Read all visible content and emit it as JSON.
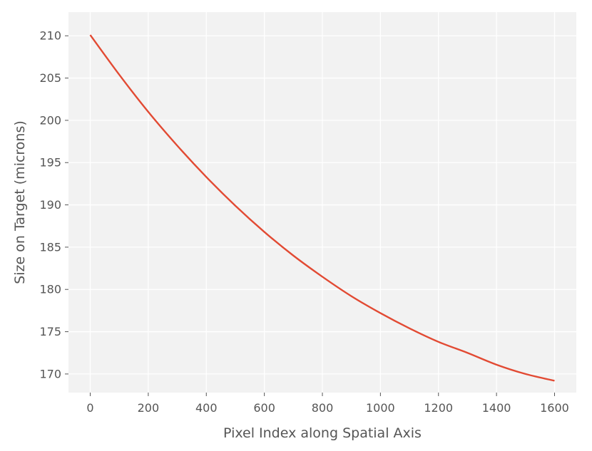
{
  "chart_data": {
    "type": "line",
    "title": "",
    "xlabel": "Pixel Index along Spatial Axis",
    "ylabel": "Size on Target (microns)",
    "xlim": [
      -75,
      1675
    ],
    "ylim": [
      167.8,
      212.8
    ],
    "xticks": [
      0,
      200,
      400,
      600,
      800,
      1000,
      1200,
      1400,
      1600
    ],
    "yticks": [
      170,
      175,
      180,
      185,
      190,
      195,
      200,
      205,
      210
    ],
    "grid": true,
    "colors": {
      "background": "#f2f2f2",
      "grid": "#ffffff",
      "line": "#e24a33",
      "text": "#555555"
    },
    "series": [
      {
        "x": [
          0,
          100,
          200,
          300,
          400,
          500,
          600,
          700,
          800,
          900,
          1000,
          1100,
          1200,
          1300,
          1400,
          1500,
          1600
        ],
        "y": [
          210.1,
          205.4,
          201.0,
          197.0,
          193.3,
          189.9,
          186.8,
          184.0,
          181.5,
          179.2,
          177.2,
          175.4,
          173.8,
          172.5,
          171.1,
          170.0,
          169.2
        ]
      }
    ]
  }
}
